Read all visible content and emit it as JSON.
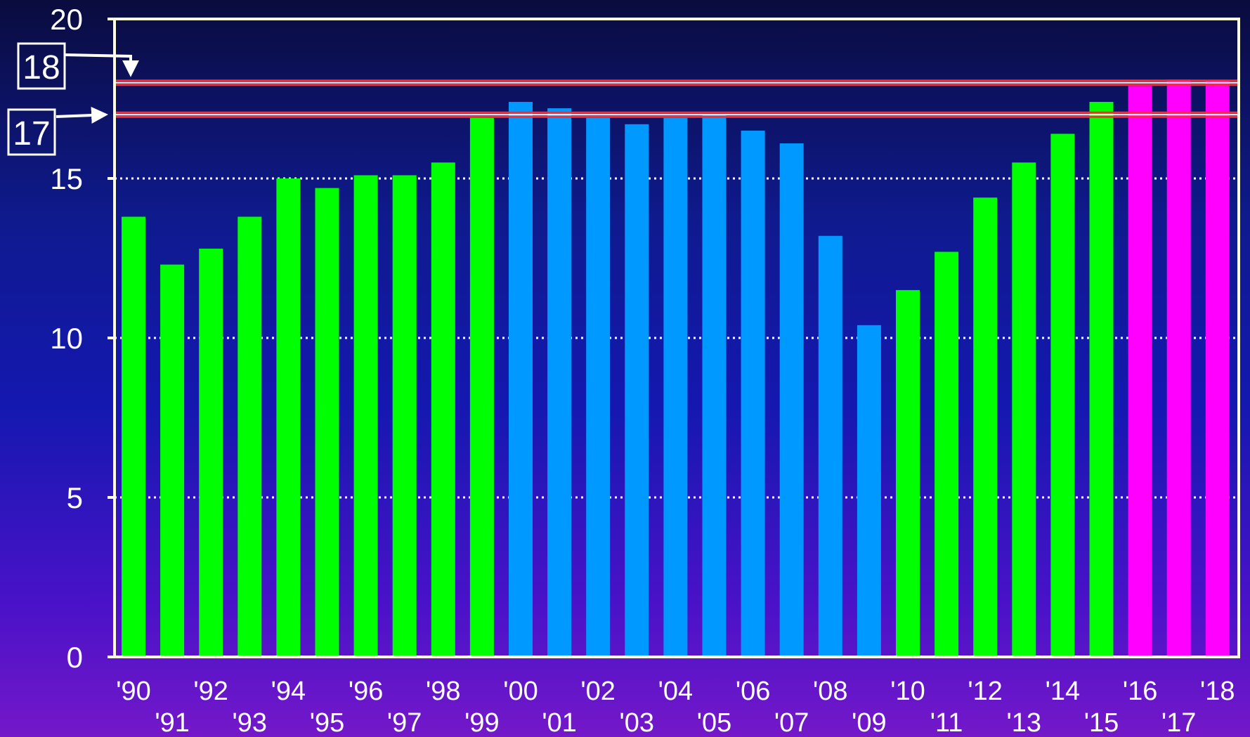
{
  "chart_data": {
    "type": "bar",
    "title": "",
    "xlabel": "",
    "ylabel": "",
    "ylim": [
      0,
      20
    ],
    "yticks": [
      "0",
      "5",
      "10",
      "15",
      "20"
    ],
    "grid": "dotted horizontal at 5, 10, 15",
    "categories": [
      "'90",
      "'91",
      "'92",
      "'93",
      "'94",
      "'95",
      "'96",
      "'97",
      "'98",
      "'99",
      "'00",
      "'01",
      "'02",
      "'03",
      "'04",
      "'05",
      "'06",
      "'07",
      "'08",
      "'09",
      "'10",
      "'11",
      "'12",
      "'13",
      "'14",
      "'15",
      "'16",
      "'17",
      "'18"
    ],
    "values": [
      13.8,
      12.3,
      12.8,
      13.8,
      15.0,
      14.7,
      15.1,
      15.1,
      15.5,
      16.9,
      17.4,
      17.2,
      16.9,
      16.7,
      16.9,
      17.0,
      16.5,
      16.1,
      13.2,
      10.4,
      11.5,
      12.7,
      14.4,
      15.5,
      16.4,
      17.4,
      17.9,
      18.1,
      18.05
    ],
    "bar_colors": [
      "#00ff00",
      "#00ff00",
      "#00ff00",
      "#00ff00",
      "#00ff00",
      "#00ff00",
      "#00ff00",
      "#00ff00",
      "#00ff00",
      "#00ff00",
      "#0099ff",
      "#0099ff",
      "#0099ff",
      "#0099ff",
      "#0099ff",
      "#0099ff",
      "#0099ff",
      "#0099ff",
      "#0099ff",
      "#0099ff",
      "#00ff00",
      "#00ff00",
      "#00ff00",
      "#00ff00",
      "#00ff00",
      "#00ff00",
      "#ff00ff",
      "#ff00ff",
      "#ff00ff"
    ],
    "reference_lines": [
      {
        "value": 18,
        "label": "18",
        "color": "#ff2a2a"
      },
      {
        "value": 17,
        "label": "17",
        "color": "#ff2a2a"
      }
    ]
  },
  "colors": {
    "axis": "#ffffe0",
    "grid": "#ffffff",
    "text": "#ffffff"
  }
}
